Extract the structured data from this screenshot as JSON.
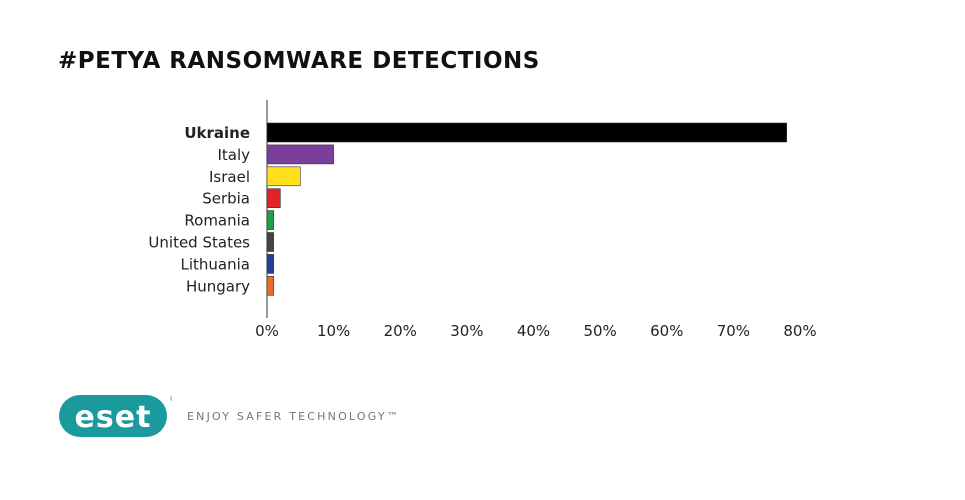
{
  "chart_data": {
    "type": "bar",
    "orientation": "horizontal",
    "title": "#PETYA RANSOMWARE DETECTIONS",
    "categories": [
      "Ukraine",
      "Italy",
      "Israel",
      "Serbia",
      "Romania",
      "United States",
      "Lithuania",
      "Hungary"
    ],
    "values": [
      78,
      10,
      5,
      2,
      1,
      1,
      1,
      1
    ],
    "colors": [
      "#000000",
      "#7b3f9b",
      "#ffe01a",
      "#e2242a",
      "#1aa24a",
      "#444444",
      "#1f3f9b",
      "#ef6a2a"
    ],
    "highlight": "Ukraine",
    "xlim": [
      0,
      80
    ],
    "xticks": [
      "0%",
      "10%",
      "20%",
      "30%",
      "40%",
      "50%",
      "60%",
      "70%",
      "80%"
    ],
    "grid": false
  },
  "footer": {
    "logo_text": "eset",
    "logo_color": "#1b9a9d",
    "tagline": "ENJOY SAFER TECHNOLOGY™"
  }
}
